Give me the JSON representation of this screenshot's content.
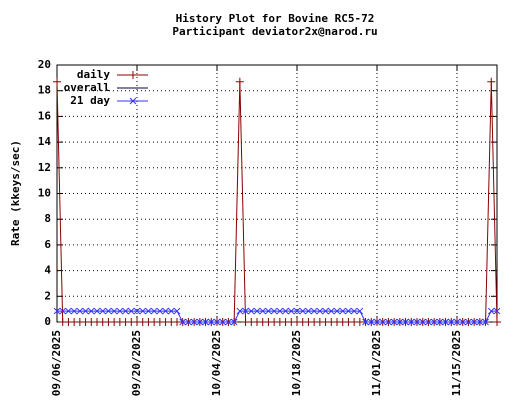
{
  "chart_data": {
    "type": "line",
    "title": "History Plot for Bovine RC5-72",
    "subtitle": "Participant deviator2x@narod.ru",
    "y_label": "Rate (kkeys/sec)",
    "x": [
      "2025-09-06",
      "2025-09-07",
      "2025-09-08",
      "2025-09-09",
      "2025-09-10",
      "2025-09-11",
      "2025-09-12",
      "2025-09-13",
      "2025-09-14",
      "2025-09-15",
      "2025-09-16",
      "2025-09-17",
      "2025-09-18",
      "2025-09-19",
      "2025-09-20",
      "2025-09-21",
      "2025-09-22",
      "2025-09-23",
      "2025-09-24",
      "2025-09-25",
      "2025-09-26",
      "2025-09-27",
      "2025-09-28",
      "2025-09-29",
      "2025-09-30",
      "2025-10-01",
      "2025-10-02",
      "2025-10-03",
      "2025-10-04",
      "2025-10-05",
      "2025-10-06",
      "2025-10-07",
      "2025-10-08",
      "2025-10-09",
      "2025-10-10",
      "2025-10-11",
      "2025-10-12",
      "2025-10-13",
      "2025-10-14",
      "2025-10-15",
      "2025-10-16",
      "2025-10-17",
      "2025-10-18",
      "2025-10-19",
      "2025-10-20",
      "2025-10-21",
      "2025-10-22",
      "2025-10-23",
      "2025-10-24",
      "2025-10-25",
      "2025-10-26",
      "2025-10-27",
      "2025-10-28",
      "2025-10-29",
      "2025-10-30",
      "2025-10-31",
      "2025-11-01",
      "2025-11-02",
      "2025-11-03",
      "2025-11-04",
      "2025-11-05",
      "2025-11-06",
      "2025-11-07",
      "2025-11-08",
      "2025-11-09",
      "2025-11-10",
      "2025-11-11",
      "2025-11-12",
      "2025-11-13",
      "2025-11-14",
      "2025-11-15",
      "2025-11-16",
      "2025-11-17",
      "2025-11-18",
      "2025-11-19",
      "2025-11-20",
      "2025-11-21",
      "2025-11-22"
    ],
    "series": [
      {
        "name": "daily",
        "color": "#8b0000",
        "marker": "plus",
        "values": [
          18.7,
          0,
          0,
          0,
          0,
          0,
          0,
          0,
          0,
          0,
          0,
          0,
          0,
          0,
          0,
          0,
          0,
          0,
          0,
          0,
          0,
          0,
          0,
          0,
          0,
          0,
          0,
          0,
          0,
          0,
          0,
          0,
          18.7,
          0,
          0,
          0,
          0,
          0,
          0,
          0,
          0,
          0,
          0,
          0,
          0,
          0,
          0,
          0,
          0,
          0,
          0,
          0,
          0,
          0,
          0,
          0,
          0,
          0,
          0,
          0,
          0,
          0,
          0,
          0,
          0,
          0,
          0,
          0,
          0,
          0,
          0,
          0,
          0,
          0,
          0,
          0,
          18.7,
          0
        ]
      },
      {
        "name": "overall",
        "color": "#000040",
        "marker": "none",
        "values": [
          null,
          null,
          null,
          null,
          null,
          null,
          null,
          null,
          null,
          null,
          null,
          null,
          null,
          null,
          null,
          null,
          null,
          null,
          null,
          null,
          null,
          null,
          null,
          null,
          null,
          null,
          null,
          null,
          null,
          null,
          null,
          null,
          null,
          null,
          null,
          null,
          null,
          null,
          null,
          null,
          null,
          null,
          null,
          null,
          null,
          null,
          null,
          null,
          null,
          null,
          null,
          null,
          null,
          null,
          null,
          null,
          null,
          null,
          null,
          null,
          null,
          null,
          null,
          null,
          null,
          null,
          null,
          null,
          null,
          null,
          null,
          null,
          null,
          null,
          null,
          null,
          null,
          null
        ]
      },
      {
        "name": "21 day",
        "color": "#3333ff",
        "marker": "cross",
        "values": [
          0.85,
          0.85,
          0.85,
          0.85,
          0.85,
          0.85,
          0.85,
          0.85,
          0.85,
          0.85,
          0.85,
          0.85,
          0.85,
          0.85,
          0.85,
          0.85,
          0.85,
          0.85,
          0.85,
          0.85,
          0.85,
          0.85,
          0,
          0,
          0,
          0,
          0,
          0,
          0,
          0,
          0,
          0,
          0.85,
          0.85,
          0.85,
          0.85,
          0.85,
          0.85,
          0.85,
          0.85,
          0.85,
          0.85,
          0.85,
          0.85,
          0.85,
          0.85,
          0.85,
          0.85,
          0.85,
          0.85,
          0.85,
          0.85,
          0.85,
          0.85,
          0,
          0,
          0,
          0,
          0,
          0,
          0,
          0,
          0,
          0,
          0,
          0,
          0,
          0,
          0,
          0,
          0,
          0,
          0,
          0,
          0,
          0,
          0.85,
          0.85
        ]
      }
    ],
    "xlim": [
      "2025-09-06",
      "2025-11-22"
    ],
    "xticks": [
      {
        "value": "2025-09-06",
        "label": "09/06/2025"
      },
      {
        "value": "2025-09-20",
        "label": "09/20/2025"
      },
      {
        "value": "2025-10-04",
        "label": "10/04/2025"
      },
      {
        "value": "2025-10-18",
        "label": "10/18/2025"
      },
      {
        "value": "2025-11-01",
        "label": "11/01/2025"
      },
      {
        "value": "2025-11-15",
        "label": "11/15/2025"
      }
    ],
    "ylim": [
      0,
      20
    ],
    "yticks": [
      0,
      2,
      4,
      6,
      8,
      10,
      12,
      14,
      16,
      18,
      20
    ],
    "grid": true,
    "legend": "top-left"
  }
}
